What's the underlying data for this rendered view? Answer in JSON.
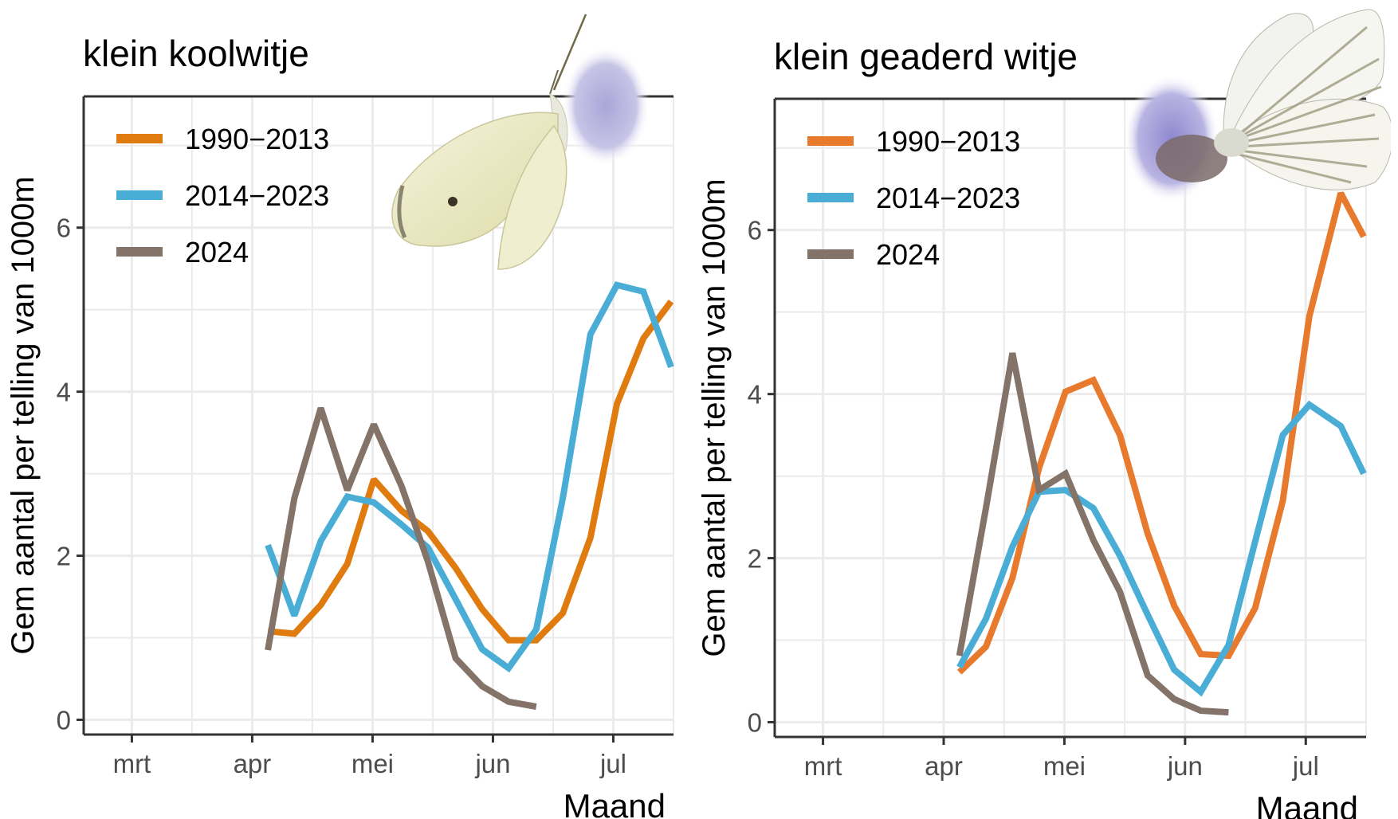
{
  "chart_data": [
    {
      "type": "line",
      "title": "klein koolwitje",
      "xlabel": "Maand",
      "ylabel": "Gem aantal per telling van 1000m",
      "x_units": "months since 1 March",
      "x_ticks": [
        {
          "value": 0,
          "label": "mrt"
        },
        {
          "value": 1,
          "label": "apr"
        },
        {
          "value": 2,
          "label": "mei"
        },
        {
          "value": 3,
          "label": "jun"
        },
        {
          "value": 4,
          "label": "jul"
        }
      ],
      "y_ticks": [
        0,
        2,
        4,
        6
      ],
      "xlim": [
        -0.4,
        4.5
      ],
      "ylim": [
        -0.18,
        7.6
      ],
      "grid": true,
      "legend_position": "top-left",
      "series": [
        {
          "name": "1990−2013",
          "color": "#E07B10",
          "x": [
            1.13,
            1.35,
            1.57,
            1.79,
            2.01,
            2.24,
            2.46,
            2.69,
            2.91,
            3.13,
            3.36,
            3.58,
            3.81,
            4.03,
            4.25,
            4.48
          ],
          "y": [
            1.08,
            1.05,
            1.4,
            1.9,
            2.93,
            2.55,
            2.3,
            1.85,
            1.35,
            0.97,
            0.97,
            1.3,
            2.22,
            3.85,
            4.65,
            5.1
          ]
        },
        {
          "name": "2014−2023",
          "color": "#4AADD6",
          "x": [
            1.13,
            1.35,
            1.57,
            1.79,
            2.01,
            2.24,
            2.46,
            2.69,
            2.91,
            3.13,
            3.36,
            3.58,
            3.81,
            4.03,
            4.25,
            4.48
          ],
          "y": [
            2.13,
            1.27,
            2.18,
            2.72,
            2.65,
            2.38,
            2.1,
            1.47,
            0.86,
            0.63,
            1.1,
            2.7,
            4.7,
            5.3,
            5.22,
            4.3
          ]
        },
        {
          "name": "2024",
          "color": "#837368",
          "x": [
            1.13,
            1.35,
            1.57,
            1.79,
            2.01,
            2.24,
            2.46,
            2.69,
            2.91,
            3.13,
            3.36
          ],
          "y": [
            0.85,
            2.7,
            3.8,
            2.8,
            3.6,
            2.85,
            1.93,
            0.75,
            0.41,
            0.22,
            0.16
          ]
        }
      ]
    },
    {
      "type": "line",
      "title": "klein geaderd witje",
      "xlabel": "Maand",
      "ylabel": "Gem aantal per telling van 1000m",
      "x_units": "months since 1 March",
      "x_ticks": [
        {
          "value": 0,
          "label": "mrt"
        },
        {
          "value": 1,
          "label": "apr"
        },
        {
          "value": 2,
          "label": "mei"
        },
        {
          "value": 3,
          "label": "jun"
        },
        {
          "value": 4,
          "label": "jul"
        }
      ],
      "y_ticks": [
        0,
        2,
        4,
        6
      ],
      "xlim": [
        -0.4,
        4.5
      ],
      "ylim": [
        -0.18,
        7.6
      ],
      "grid": true,
      "legend_position": "top-left",
      "series": [
        {
          "name": "1990−2013",
          "color": "#E87A2E",
          "x": [
            1.13,
            1.35,
            1.57,
            1.79,
            2.01,
            2.24,
            2.46,
            2.69,
            2.91,
            3.13,
            3.36,
            3.58,
            3.81,
            4.03,
            4.29,
            4.48
          ],
          "y": [
            0.61,
            0.92,
            1.76,
            3.1,
            4.03,
            4.17,
            3.5,
            2.3,
            1.42,
            0.83,
            0.81,
            1.39,
            2.7,
            4.95,
            6.45,
            5.92
          ]
        },
        {
          "name": "2014−2023",
          "color": "#4AADD6",
          "x": [
            1.13,
            1.35,
            1.57,
            1.79,
            2.01,
            2.24,
            2.46,
            2.69,
            2.91,
            3.13,
            3.36,
            3.58,
            3.81,
            4.03,
            4.29,
            4.48
          ],
          "y": [
            0.67,
            1.26,
            2.14,
            2.81,
            2.83,
            2.61,
            2.03,
            1.31,
            0.64,
            0.37,
            0.94,
            2.2,
            3.5,
            3.87,
            3.61,
            3.03
          ]
        },
        {
          "name": "2024",
          "color": "#837368",
          "x": [
            1.13,
            1.35,
            1.57,
            1.79,
            2.01,
            2.24,
            2.46,
            2.69,
            2.91,
            3.13,
            3.36
          ],
          "y": [
            0.81,
            2.61,
            4.5,
            2.83,
            3.03,
            2.22,
            1.59,
            0.57,
            0.28,
            0.14,
            0.12
          ]
        }
      ]
    }
  ]
}
